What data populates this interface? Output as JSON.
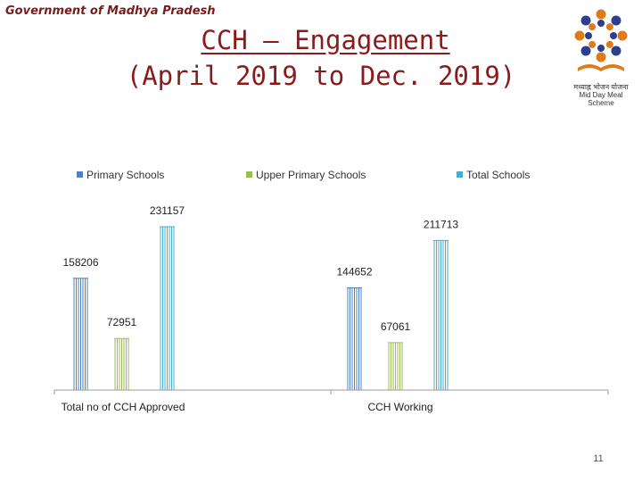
{
  "header": {
    "gov_text": "Government of Madhya Pradesh",
    "title_line1": "CCH – Engagement",
    "title_line2": "(April 2019 to Dec. 2019)"
  },
  "logo": {
    "caption_hindi": "मध्याह्न भोजन योजना",
    "caption_en": "Mid Day Meal Scheme"
  },
  "colors": {
    "primary": "#4f81bd",
    "upper_primary": "#9bbb59",
    "total": "#4bacc6",
    "title": "#8b1a1a"
  },
  "chart_data": {
    "type": "bar",
    "categories": [
      "Total no of CCH Approved",
      "CCH Working"
    ],
    "series": [
      {
        "name": "Primary Schools",
        "values": [
          158206,
          144652
        ]
      },
      {
        "name": "Upper Primary  Schools",
        "values": [
          72951,
          67061
        ]
      },
      {
        "name": "Total Schools",
        "values": [
          231157,
          211713
        ]
      }
    ],
    "legend": "top",
    "grid": false
  },
  "page_number": "11"
}
